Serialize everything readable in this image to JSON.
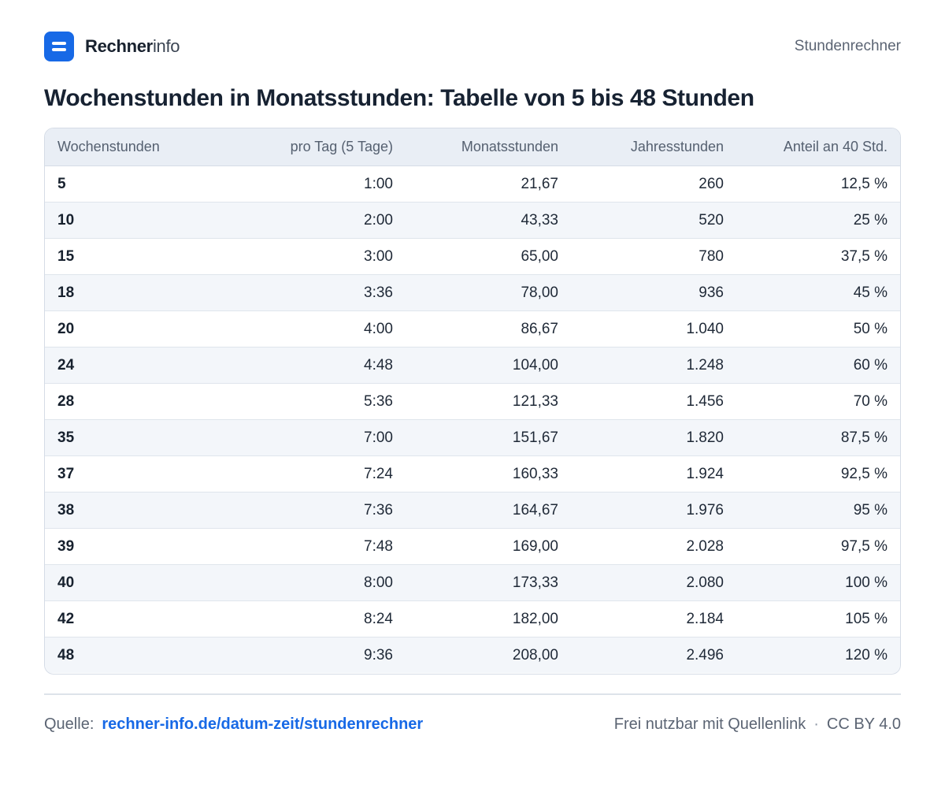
{
  "header": {
    "brand_strong": "Rechner",
    "brand_light": "info",
    "logo_icon": "equals-icon",
    "accent_color": "#1769e6",
    "nav_link": "Stundenrechner"
  },
  "title": "Wochenstunden in Monatsstunden: Tabelle von 5 bis 48 Stunden",
  "table": {
    "columns": [
      "Wochenstunden",
      "pro Tag (5 Tage)",
      "Monatsstunden",
      "Jahresstunden",
      "Anteil an 40 Std."
    ],
    "rows": [
      [
        "5",
        "1:00",
        "21,67",
        "260",
        "12,5 %"
      ],
      [
        "10",
        "2:00",
        "43,33",
        "520",
        "25 %"
      ],
      [
        "15",
        "3:00",
        "65,00",
        "780",
        "37,5 %"
      ],
      [
        "18",
        "3:36",
        "78,00",
        "936",
        "45 %"
      ],
      [
        "20",
        "4:00",
        "86,67",
        "1.040",
        "50 %"
      ],
      [
        "24",
        "4:48",
        "104,00",
        "1.248",
        "60 %"
      ],
      [
        "28",
        "5:36",
        "121,33",
        "1.456",
        "70 %"
      ],
      [
        "35",
        "7:00",
        "151,67",
        "1.820",
        "87,5 %"
      ],
      [
        "37",
        "7:24",
        "160,33",
        "1.924",
        "92,5 %"
      ],
      [
        "38",
        "7:36",
        "164,67",
        "1.976",
        "95 %"
      ],
      [
        "39",
        "7:48",
        "169,00",
        "2.028",
        "97,5 %"
      ],
      [
        "40",
        "8:00",
        "173,33",
        "2.080",
        "100 %"
      ],
      [
        "42",
        "8:24",
        "182,00",
        "2.184",
        "105 %"
      ],
      [
        "48",
        "9:36",
        "208,00",
        "2.496",
        "120 %"
      ]
    ]
  },
  "footer": {
    "source_label": "Quelle:",
    "source_link": "rechner-info.de/datum-zeit/stundenrechner",
    "license_text": "Frei nutzbar mit Quellenlink",
    "separator": "·",
    "license_name": "CC BY 4.0"
  }
}
